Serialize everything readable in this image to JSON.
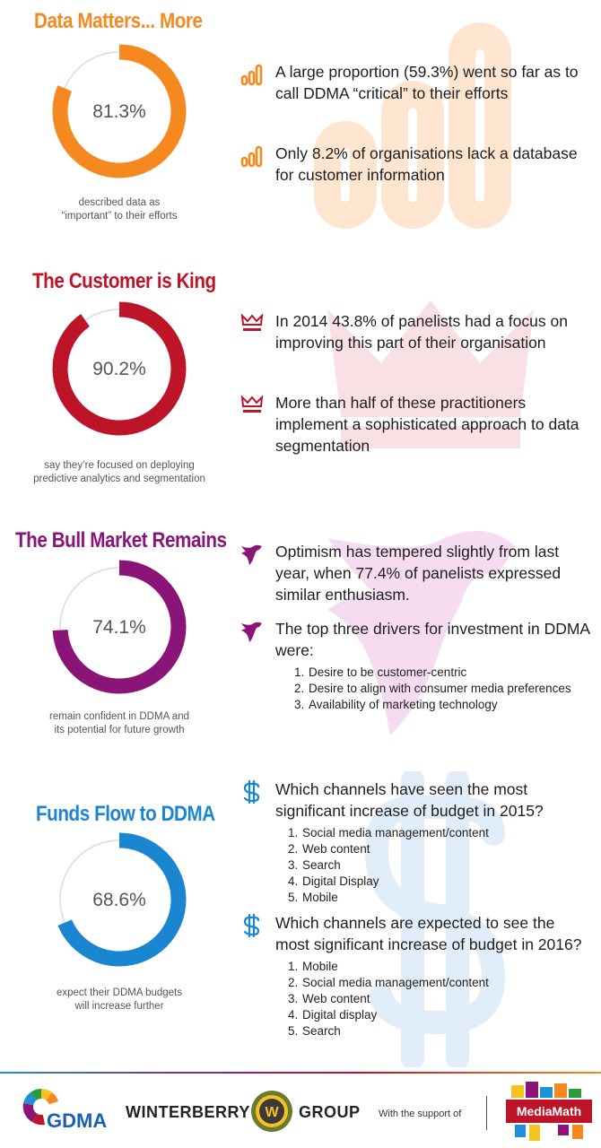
{
  "colors": {
    "orange": "#f5891f",
    "red": "#be1428",
    "purple": "#8a1478",
    "blue": "#1a85d0",
    "ring_track": "#dcdcdc"
  },
  "sections": [
    {
      "title": "Data Matters... More",
      "percent_label": "81.3%",
      "percent_value": 81.3,
      "caption_line1": "described data as",
      "caption_line2": "“important” to their efforts",
      "icon": "bar-chart-icon",
      "points": [
        {
          "text": "A large proportion (59.3%) went so far as to call DDMA “critical” to their efforts"
        },
        {
          "text": "Only 8.2% of organisations lack a database for customer information"
        }
      ]
    },
    {
      "title": "The Customer is King",
      "percent_label": "90.2%",
      "percent_value": 90.2,
      "caption_line1": "say they’re focused on deploying",
      "caption_line2": "predictive analytics and segmentation",
      "icon": "crown-icon",
      "points": [
        {
          "text": "In 2014 43.8% of panelists had a focus on improving this part of their organisation"
        },
        {
          "text": "More than half of these practitioners implement a sophisticated approach to data segmentation"
        }
      ]
    },
    {
      "title": "The Bull Market Remains",
      "percent_label": "74.1%",
      "percent_value": 74.1,
      "caption_line1": "remain confident in DDMA and",
      "caption_line2": "its potential for future growth",
      "icon": "bull-icon",
      "points": [
        {
          "text": "Optimism has tempered slightly from last year, when 77.4% of panelists expressed similar enthusiasm."
        },
        {
          "text": "The top three drivers for investment in DDMA were:",
          "list": [
            "Desire to be customer-centric",
            "Desire to align with consumer media preferences",
            "Availability of marketing technology"
          ]
        }
      ]
    },
    {
      "title": "Funds Flow to DDMA",
      "percent_label": "68.6%",
      "percent_value": 68.6,
      "caption_line1": "expect their DDMA budgets",
      "caption_line2": "will increase further",
      "icon": "dollar-icon",
      "points": [
        {
          "text": "Which channels have seen the most significant increase of budget in 2015?",
          "list": [
            "Social media management/content",
            "Web content",
            "Search",
            "Digital Display",
            "Mobile"
          ]
        },
        {
          "text": "Which channels are expected to see the most significant increase of budget in 2016?",
          "list": [
            "Mobile",
            "Social media management/content",
            "Web content",
            "Digital display",
            "Search"
          ]
        }
      ]
    }
  ],
  "footer": {
    "gdma": "GDMA",
    "winterberry_left": "WINTERBERRY",
    "winterberry_mark": "W",
    "winterberry_right": "GROUP",
    "support": "With the support of",
    "mediamath": "MediaMath"
  },
  "list_numbers": [
    "1.",
    "2.",
    "3.",
    "4.",
    "5."
  ]
}
